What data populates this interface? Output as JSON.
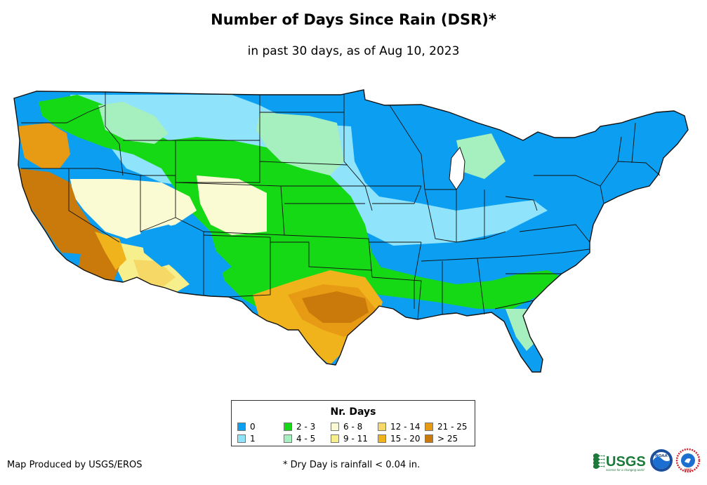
{
  "title": "Number of Days Since Rain (DSR)*",
  "subtitle": "in past 30 days, as of Aug 10, 2023",
  "legend": {
    "title": "Nr. Days",
    "items": [
      {
        "label": "0",
        "color": "#0c9ef0"
      },
      {
        "label": "1",
        "color": "#8fe3fb"
      },
      {
        "label": "2 - 3",
        "color": "#16d916"
      },
      {
        "label": "4 - 5",
        "color": "#a6efbe"
      },
      {
        "label": "6 - 8",
        "color": "#fbfbd3"
      },
      {
        "label": "9 - 11",
        "color": "#f7ee8c"
      },
      {
        "label": "12 - 14",
        "color": "#f6d866"
      },
      {
        "label": "15 - 20",
        "color": "#f0b31c"
      },
      {
        "label": "21 - 25",
        "color": "#e79a14"
      },
      {
        "label": "> 25",
        "color": "#c97a0a"
      }
    ]
  },
  "credit": "Map Produced by USGS/EROS",
  "footnote": "* Dry Day is rainfall < 0.04 in.",
  "logos": {
    "usgs_text": "USGS",
    "usgs_tagline": "science for a changing world",
    "noaa_text": "NOAA",
    "nws_text": "NWS"
  },
  "colors": {
    "state_border": "#111111",
    "usgs_green": "#1b7a3a"
  }
}
